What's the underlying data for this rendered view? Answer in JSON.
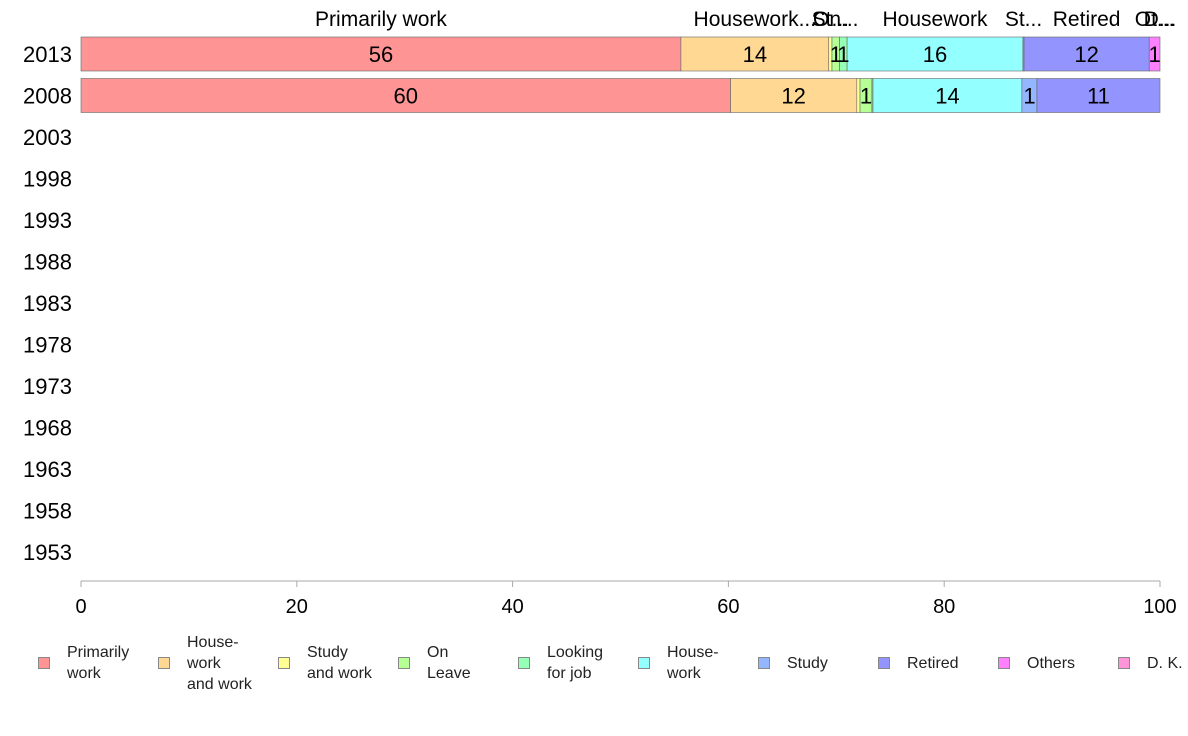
{
  "chart_data": {
    "type": "bar",
    "orientation": "horizontal",
    "stacked": true,
    "y_categories": [
      "2013",
      "2008",
      "2003",
      "1998",
      "1993",
      "1988",
      "1983",
      "1978",
      "1973",
      "1968",
      "1963",
      "1958",
      "1953"
    ],
    "xlim": [
      0,
      100
    ],
    "x_ticks": [
      "0",
      "20",
      "40",
      "60",
      "80",
      "100"
    ],
    "grid": false,
    "legend_position": "bottom",
    "series": [
      {
        "name": "Primarily work",
        "legend_label": "Primarily\nwork",
        "header": "Primarily work",
        "color": "#ff9494",
        "values": {
          "2013": 55.6,
          "2008": 60.2
        },
        "labels": {
          "2013": "56",
          "2008": "60"
        }
      },
      {
        "name": "House-work and work",
        "legend_label": "House-\nwork\nand work",
        "header": "Housework...",
        "color": "#ffd994",
        "values": {
          "2013": 13.7,
          "2008": 11.7
        },
        "labels": {
          "2013": "14",
          "2008": "12"
        }
      },
      {
        "name": "Study and work",
        "legend_label": "Study\nand work",
        "header": "St...",
        "color": "#ffff94",
        "values": {
          "2013": 0.3,
          "2008": 0.3
        },
        "labels": {
          "2013": "",
          "2008": ""
        }
      },
      {
        "name": "On Leave",
        "legend_label": "On\nLeave",
        "header": "On...",
        "color": "#b5ff94",
        "values": {
          "2013": 0.7,
          "2008": 1.1
        },
        "labels": {
          "2013": "1",
          "2008": "1"
        }
      },
      {
        "name": "Looking for job",
        "legend_label": "Looking\nfor job",
        "header": "",
        "color": "#94ffb5",
        "values": {
          "2013": 0.7,
          "2008": 0.1
        },
        "labels": {
          "2013": "1",
          "2008": ""
        }
      },
      {
        "name": "House-work",
        "legend_label": "House-\nwork",
        "header": "Housework",
        "color": "#94ffff",
        "values": {
          "2013": 16.3,
          "2008": 13.8
        },
        "labels": {
          "2013": "16",
          "2008": "14"
        }
      },
      {
        "name": "Study",
        "legend_label": "Study",
        "header": "St...",
        "color": "#94b5ff",
        "values": {
          "2013": 0.1,
          "2008": 1.4
        },
        "labels": {
          "2013": "",
          "2008": "1"
        }
      },
      {
        "name": "Retired",
        "legend_label": "Retired",
        "header": "Retired",
        "color": "#9494ff",
        "values": {
          "2013": 11.6,
          "2008": 11.4
        },
        "labels": {
          "2013": "12",
          "2008": "11"
        }
      },
      {
        "name": "Others",
        "legend_label": "Others",
        "header": "Ot...",
        "color": "#ff80ff",
        "values": {
          "2013": 1.0,
          "2008": 0.0
        },
        "labels": {
          "2013": "1",
          "2008": ""
        }
      },
      {
        "name": "D. K.",
        "legend_label": "D. K.",
        "header": "D...",
        "color": "#ff94d9",
        "values": {
          "2013": 0.0,
          "2008": 0.0
        },
        "labels": {
          "2013": "",
          "2008": ""
        }
      }
    ]
  }
}
